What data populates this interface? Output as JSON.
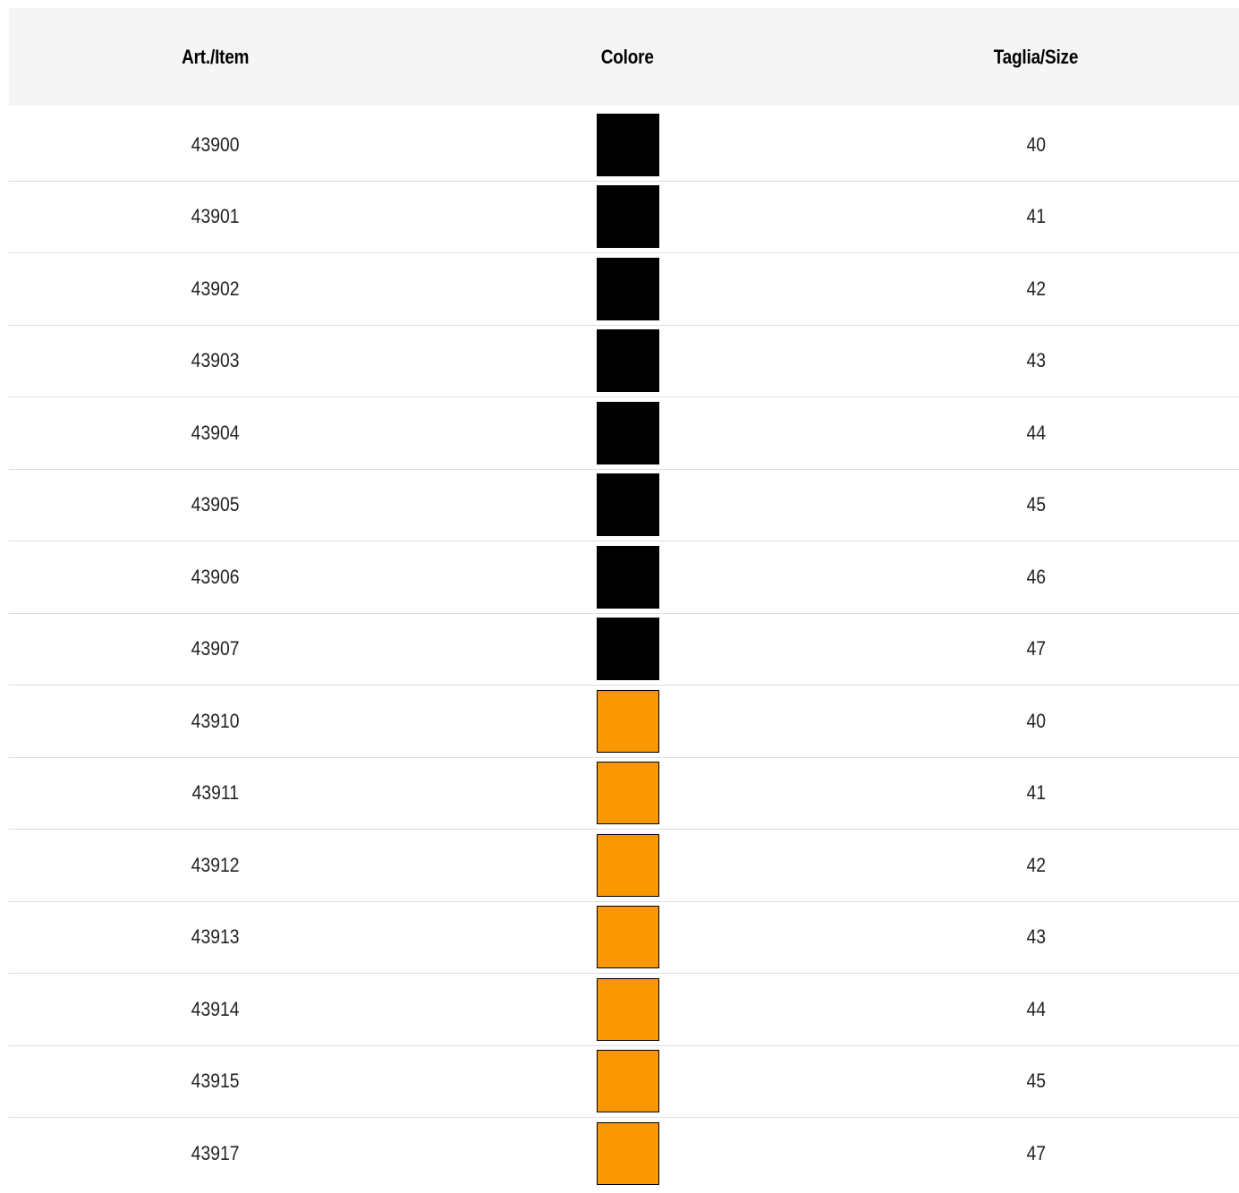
{
  "table": {
    "headers": {
      "item": "Art./Item",
      "color": "Colore",
      "size": "Taglia/Size"
    },
    "rows": [
      {
        "item": "43900",
        "color": "#000000",
        "size": "40"
      },
      {
        "item": "43901",
        "color": "#000000",
        "size": "41"
      },
      {
        "item": "43902",
        "color": "#000000",
        "size": "42"
      },
      {
        "item": "43903",
        "color": "#000000",
        "size": "43"
      },
      {
        "item": "43904",
        "color": "#000000",
        "size": "44"
      },
      {
        "item": "43905",
        "color": "#000000",
        "size": "45"
      },
      {
        "item": "43906",
        "color": "#000000",
        "size": "46"
      },
      {
        "item": "43907",
        "color": "#000000",
        "size": "47"
      },
      {
        "item": "43910",
        "color": "#F99700",
        "size": "40"
      },
      {
        "item": "43911",
        "color": "#F99700",
        "size": "41"
      },
      {
        "item": "43912",
        "color": "#F99700",
        "size": "42"
      },
      {
        "item": "43913",
        "color": "#F99700",
        "size": "43"
      },
      {
        "item": "43914",
        "color": "#F99700",
        "size": "44"
      },
      {
        "item": "43915",
        "color": "#F99700",
        "size": "45"
      },
      {
        "item": "43917",
        "color": "#F99700",
        "size": "47"
      }
    ]
  }
}
